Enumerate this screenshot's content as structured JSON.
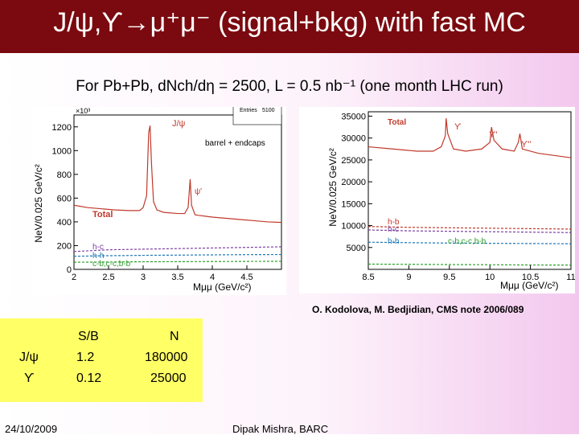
{
  "slide": {
    "title": "J/ψ,ϒ→μ⁺μ⁻ (signal+bkg) with fast MC",
    "subtitle": "For Pb+Pb, dNch/dη = 2500, L = 0.5 nb⁻¹ (one month LHC run)",
    "citation": "O. Kodolova, M. Bedjidian, CMS note 2006/089",
    "footer_date": "24/10/2009",
    "footer_author": "Dipak Mishra, BARC",
    "colors": {
      "title_bg": "#7a0a0f",
      "table_bg": "#ffff66",
      "total": "#c0392b"
    }
  },
  "table": {
    "headers": [
      "S/B",
      "N"
    ],
    "rows": [
      {
        "particle": "J/ψ",
        "sb": "1.2",
        "n": "180000"
      },
      {
        "particle": "ϒ",
        "sb": "0.12",
        "n": "25000"
      }
    ]
  },
  "chart_data": [
    {
      "type": "line",
      "xlabel": "Mμμ (GeV/c²)",
      "ylabel": "NeV/0.025 GeV/c²",
      "y_multiplier": "×10³",
      "xlim": [
        2,
        5
      ],
      "ylim": [
        0,
        1300
      ],
      "x_ticks": [
        "2",
        "2.5",
        "3",
        "3.5",
        "4",
        "4.5"
      ],
      "y_ticks": [
        "0",
        "200",
        "400",
        "600",
        "800",
        "1000",
        "1200"
      ],
      "annotations": [
        "J/ψ",
        "ψ'",
        "barrel + endcaps",
        "Total",
        "h-c",
        "h-h",
        "c-b,c-c,b-b"
      ],
      "stats_box": [
        "Entries",
        "5100"
      ],
      "series": [
        {
          "name": "Total",
          "color": "#c0392b",
          "x": [
            2.0,
            2.2,
            2.4,
            2.6,
            2.8,
            2.95,
            3.0,
            3.05,
            3.08,
            3.1,
            3.12,
            3.15,
            3.2,
            3.3,
            3.5,
            3.6,
            3.65,
            3.68,
            3.7,
            3.75,
            3.8,
            4.0,
            4.2,
            4.4,
            4.6,
            4.8,
            5.0
          ],
          "y": [
            540,
            520,
            510,
            500,
            495,
            495,
            520,
            620,
            1150,
            1210,
            900,
            570,
            500,
            480,
            470,
            470,
            520,
            760,
            540,
            460,
            455,
            440,
            430,
            420,
            410,
            400,
            395
          ]
        },
        {
          "name": "h-c",
          "color": "#7b3fa0",
          "x": [
            2.0,
            2.5,
            3.0,
            3.5,
            4.0,
            4.5,
            5.0
          ],
          "y": [
            150,
            165,
            170,
            175,
            180,
            185,
            190
          ]
        },
        {
          "name": "h-h",
          "color": "#1f77b4",
          "x": [
            2.0,
            2.5,
            3.0,
            3.5,
            4.0,
            4.5,
            5.0
          ],
          "y": [
            110,
            115,
            118,
            120,
            122,
            124,
            125
          ]
        },
        {
          "name": "c-b,c-c,b-b",
          "color": "#2ca02c",
          "x": [
            2.0,
            2.5,
            3.0,
            3.5,
            4.0,
            4.5,
            5.0
          ],
          "y": [
            60,
            62,
            64,
            65,
            66,
            67,
            68
          ]
        }
      ]
    },
    {
      "type": "line",
      "xlabel": "Mμμ (GeV/c²)",
      "ylabel": "NeV/0.025 GeV/c²",
      "xlim": [
        8.5,
        11
      ],
      "ylim": [
        0,
        36000
      ],
      "x_ticks": [
        "8.5",
        "9",
        "9.5",
        "10",
        "10.5",
        "11"
      ],
      "y_ticks": [
        "5000",
        "10000",
        "15000",
        "20000",
        "25000",
        "30000",
        "35000"
      ],
      "annotations": [
        "Total",
        "ϒ",
        "ϒ'",
        "ϒ''",
        "h-b",
        "h-c",
        "h-h",
        "c-b,c-c,b-b"
      ],
      "series": [
        {
          "name": "Total",
          "color": "#c0392b",
          "x": [
            8.5,
            8.8,
            9.1,
            9.3,
            9.4,
            9.45,
            9.46,
            9.48,
            9.55,
            9.7,
            9.9,
            10.0,
            10.02,
            10.05,
            10.15,
            10.3,
            10.35,
            10.37,
            10.4,
            10.6,
            10.8,
            11.0
          ],
          "y": [
            28000,
            27500,
            27000,
            27000,
            28000,
            30500,
            34500,
            31000,
            27500,
            27000,
            27500,
            29000,
            32500,
            29500,
            27500,
            27000,
            29000,
            31000,
            27500,
            26500,
            26000,
            25500
          ]
        },
        {
          "name": "h-b",
          "color": "#c0392b",
          "x": [
            8.5,
            9.0,
            9.5,
            10.0,
            10.5,
            11.0
          ],
          "y": [
            9800,
            9600,
            9500,
            9400,
            9300,
            9200
          ]
        },
        {
          "name": "h-c",
          "color": "#7b3fa0",
          "x": [
            8.5,
            9.0,
            9.5,
            10.0,
            10.5,
            11.0
          ],
          "y": [
            9000,
            8800,
            8700,
            8600,
            8500,
            8400
          ]
        },
        {
          "name": "h-h",
          "color": "#1f77b4",
          "x": [
            8.5,
            9.0,
            9.5,
            10.0,
            10.5,
            11.0
          ],
          "y": [
            6200,
            6100,
            6000,
            5950,
            5900,
            5850
          ]
        },
        {
          "name": "c-b,c-c,b-b",
          "color": "#2ca02c",
          "x": [
            8.5,
            9.0,
            9.5,
            10.0,
            10.5,
            11.0
          ],
          "y": [
            1200,
            1150,
            1100,
            1050,
            1000,
            980
          ]
        }
      ]
    }
  ]
}
